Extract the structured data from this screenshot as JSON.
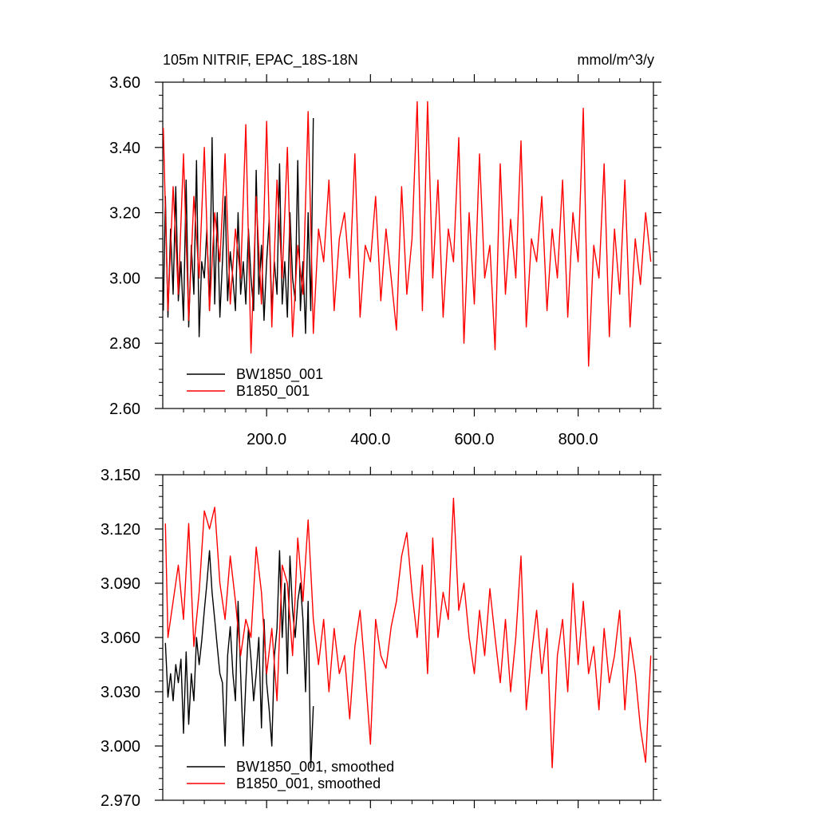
{
  "header": {
    "title": "105m NITRIF, EPAC_18S-18N",
    "units": "mmol/m^3/y"
  },
  "colors": {
    "BW1850_001": "#000000",
    "B1850_001": "#ff0000"
  },
  "chart_data": [
    {
      "type": "line",
      "title": "105m NITRIF, EPAC_18S-18N",
      "units_label": "mmol/m^3/y",
      "xlim": [
        0,
        945
      ],
      "ylim": [
        2.6,
        3.6
      ],
      "x_ticks": [
        200,
        400,
        600,
        800
      ],
      "x_tick_labels": [
        "200.0",
        "400.0",
        "600.0",
        "800.0"
      ],
      "y_ticks": [
        2.6,
        2.8,
        3.0,
        3.2,
        3.4,
        3.6
      ],
      "y_tick_labels": [
        "2.60",
        "2.80",
        "3.00",
        "3.20",
        "3.40",
        "3.60"
      ],
      "grid": false,
      "legend_position": "bottom-left",
      "series": [
        {
          "name": "BW1850_001",
          "color": "#000000",
          "x": [
            1,
            5,
            10,
            15,
            20,
            25,
            30,
            35,
            40,
            45,
            50,
            55,
            60,
            65,
            70,
            75,
            80,
            85,
            90,
            95,
            100,
            105,
            110,
            115,
            120,
            125,
            130,
            135,
            140,
            145,
            150,
            155,
            160,
            165,
            170,
            175,
            180,
            185,
            190,
            195,
            200,
            205,
            210,
            215,
            220,
            225,
            230,
            235,
            240,
            245,
            250,
            255,
            260,
            265,
            270,
            275,
            280,
            285,
            290
          ],
          "values": [
            2.9,
            3.25,
            2.88,
            3.15,
            2.95,
            3.28,
            2.93,
            3.05,
            2.87,
            3.3,
            2.85,
            3.1,
            2.95,
            3.36,
            2.82,
            3.05,
            3.0,
            3.15,
            2.9,
            3.43,
            2.92,
            3.2,
            2.88,
            3.05,
            3.25,
            2.93,
            3.08,
            3.0,
            2.9,
            3.2,
            2.95,
            3.05,
            2.92,
            3.15,
            3.0,
            2.9,
            3.33,
            2.95,
            3.1,
            2.87,
            3.05,
            3.18,
            2.9,
            3.05,
            2.95,
            3.35,
            2.92,
            3.05,
            2.88,
            3.2,
            3.0,
            2.93,
            3.36,
            2.9,
            3.05,
            2.83,
            3.2,
            2.9,
            3.49
          ]
        },
        {
          "name": "B1850_001",
          "color": "#ff0000",
          "x": [
            1,
            10,
            20,
            30,
            40,
            50,
            60,
            70,
            80,
            90,
            100,
            110,
            120,
            130,
            140,
            150,
            160,
            170,
            180,
            190,
            200,
            210,
            220,
            230,
            240,
            250,
            260,
            270,
            280,
            290,
            300,
            310,
            320,
            330,
            340,
            350,
            360,
            370,
            380,
            390,
            400,
            410,
            420,
            430,
            440,
            450,
            460,
            470,
            480,
            490,
            500,
            510,
            520,
            530,
            540,
            550,
            560,
            570,
            580,
            590,
            600,
            610,
            620,
            630,
            640,
            650,
            660,
            670,
            680,
            690,
            700,
            710,
            720,
            730,
            740,
            750,
            760,
            770,
            780,
            790,
            800,
            810,
            820,
            830,
            840,
            850,
            860,
            870,
            880,
            890,
            900,
            910,
            920,
            930,
            940
          ],
          "values": [
            3.46,
            2.9,
            3.28,
            2.95,
            3.38,
            2.87,
            3.25,
            3.0,
            3.4,
            2.9,
            3.2,
            3.05,
            3.38,
            2.92,
            3.15,
            3.0,
            3.47,
            2.77,
            3.25,
            2.92,
            3.48,
            2.85,
            3.3,
            3.0,
            3.4,
            2.82,
            3.1,
            2.95,
            3.51,
            2.83,
            3.15,
            3.05,
            3.3,
            2.9,
            3.12,
            3.2,
            3.0,
            3.38,
            2.88,
            3.1,
            3.05,
            3.25,
            2.93,
            3.15,
            3.0,
            2.84,
            3.28,
            2.95,
            3.12,
            3.54,
            2.9,
            3.54,
            3.0,
            3.3,
            2.88,
            3.15,
            3.05,
            3.43,
            2.8,
            3.2,
            2.92,
            3.38,
            3.0,
            3.1,
            2.78,
            3.35,
            2.95,
            3.18,
            3.0,
            3.42,
            2.85,
            3.12,
            3.05,
            3.25,
            2.9,
            3.15,
            3.0,
            3.3,
            2.88,
            3.2,
            3.05,
            3.52,
            2.73,
            3.1,
            3.0,
            3.35,
            2.82,
            3.15,
            2.95,
            3.3,
            2.85,
            3.12,
            2.98,
            3.2,
            3.05
          ]
        }
      ]
    },
    {
      "type": "line",
      "xlim": [
        0,
        945
      ],
      "ylim": [
        2.97,
        3.15
      ],
      "x_ticks": [
        200,
        400,
        600,
        800
      ],
      "y_ticks": [
        2.97,
        3.0,
        3.03,
        3.06,
        3.09,
        3.12,
        3.15
      ],
      "y_tick_labels": [
        "2.970",
        "3.000",
        "3.030",
        "3.060",
        "3.090",
        "3.120",
        "3.150"
      ],
      "grid": false,
      "legend_position": "bottom-left",
      "series": [
        {
          "name": "BW1850_001, smoothed",
          "color": "#000000",
          "x": [
            5,
            10,
            15,
            20,
            25,
            30,
            35,
            40,
            45,
            50,
            55,
            60,
            65,
            70,
            75,
            80,
            85,
            90,
            95,
            100,
            105,
            110,
            115,
            120,
            125,
            130,
            135,
            140,
            145,
            150,
            155,
            160,
            165,
            170,
            175,
            180,
            185,
            190,
            195,
            200,
            205,
            210,
            215,
            220,
            225,
            230,
            235,
            240,
            245,
            250,
            255,
            260,
            265,
            270,
            275,
            280,
            285,
            290
          ],
          "values": [
            3.057,
            3.027,
            3.04,
            3.025,
            3.045,
            3.035,
            3.048,
            3.007,
            3.052,
            3.012,
            3.04,
            3.025,
            3.06,
            3.045,
            3.058,
            3.075,
            3.09,
            3.108,
            3.085,
            3.07,
            3.055,
            3.04,
            3.035,
            3.0,
            3.05,
            3.066,
            3.04,
            3.025,
            3.08,
            3.04,
            3.0,
            3.035,
            3.065,
            3.048,
            3.025,
            3.04,
            3.06,
            3.01,
            3.07,
            3.035,
            3.02,
            3.0,
            3.05,
            3.065,
            3.108,
            3.06,
            3.09,
            3.04,
            3.105,
            3.075,
            3.06,
            3.08,
            3.09,
            3.07,
            3.03,
            3.08,
            2.988,
            3.022
          ]
        },
        {
          "name": "B1850_001, smoothed",
          "color": "#ff0000",
          "x": [
            5,
            10,
            20,
            30,
            40,
            50,
            60,
            70,
            80,
            90,
            100,
            110,
            120,
            130,
            140,
            150,
            160,
            170,
            180,
            190,
            200,
            210,
            220,
            230,
            240,
            250,
            260,
            270,
            280,
            290,
            300,
            310,
            320,
            330,
            340,
            350,
            360,
            370,
            380,
            390,
            400,
            410,
            420,
            430,
            440,
            450,
            460,
            470,
            480,
            490,
            500,
            510,
            520,
            530,
            540,
            550,
            560,
            570,
            580,
            590,
            600,
            610,
            620,
            630,
            640,
            650,
            660,
            670,
            680,
            690,
            700,
            710,
            720,
            730,
            740,
            750,
            760,
            770,
            780,
            790,
            800,
            810,
            820,
            830,
            840,
            850,
            860,
            870,
            880,
            890,
            900,
            910,
            920,
            930,
            940
          ],
          "values": [
            3.123,
            3.06,
            3.08,
            3.1,
            3.07,
            3.123,
            3.055,
            3.085,
            3.13,
            3.12,
            3.132,
            3.09,
            3.07,
            3.105,
            3.08,
            3.05,
            3.07,
            3.06,
            3.11,
            3.085,
            3.04,
            3.065,
            3.025,
            3.1,
            3.09,
            3.05,
            3.115,
            3.08,
            3.125,
            3.07,
            3.045,
            3.07,
            3.03,
            3.065,
            3.04,
            3.05,
            3.015,
            3.055,
            3.075,
            3.04,
            3.001,
            3.07,
            3.05,
            3.043,
            3.066,
            3.08,
            3.105,
            3.118,
            3.085,
            3.06,
            3.1,
            3.04,
            3.115,
            3.06,
            3.085,
            3.07,
            3.137,
            3.075,
            3.09,
            3.06,
            3.04,
            3.075,
            3.05,
            3.087,
            3.06,
            3.035,
            3.07,
            3.03,
            3.06,
            3.105,
            3.02,
            3.05,
            3.075,
            3.04,
            3.065,
            2.988,
            3.05,
            3.07,
            3.03,
            3.09,
            3.045,
            3.08,
            3.04,
            3.055,
            3.02,
            3.065,
            3.035,
            3.05,
            3.075,
            3.02,
            3.06,
            3.04,
            3.01,
            2.991,
            3.05
          ]
        }
      ]
    }
  ]
}
